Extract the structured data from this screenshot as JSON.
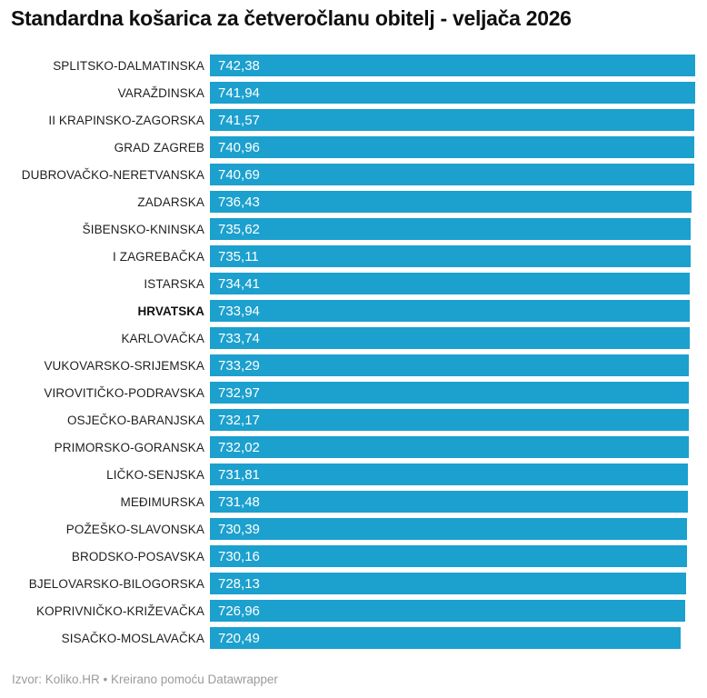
{
  "title": "Standardna košarica za četveročlanu obitelj - veljača 2026",
  "footer": {
    "text": "Izvor: Koliko.HR • Kreirano pomoću Datawrapper"
  },
  "colors": {
    "bar": "#1ca0ce",
    "title_text": "#0f0f0f",
    "label_text": "#1f1f1f",
    "value_text": "#ffffff",
    "footer_text": "#9b9b9b",
    "background": "#ffffff"
  },
  "chart_data": {
    "type": "bar",
    "orientation": "horizontal",
    "title": "Standardna košarica za četveročlanu obitelj - veljača 2026",
    "xlabel": "",
    "ylabel": "",
    "xlim": [
      0,
      742.38
    ],
    "grid": false,
    "legend": false,
    "highlight_category": "HRVATSKA",
    "source": "Izvor: Koliko.HR",
    "credit": "Kreirano pomoću Datawrapper",
    "categories": [
      "SPLITSKO-DALMATINSKA",
      "VARAŽDINSKA",
      "II KRAPINSKO-ZAGORSKA",
      "GRAD ZAGREB",
      "DUBROVAČKO-NERETVANSKA",
      "ZADARSKA",
      "ŠIBENSKO-KNINSKA",
      "I ZAGREBAČKA",
      "ISTARSKA",
      "HRVATSKA",
      "KARLOVAČKA",
      "VUKOVARSKO-SRIJEMSKA",
      "VIROVITIČKO-PODRAVSKA",
      "OSJEČKO-BARANJSKA",
      "PRIMORSKO-GORANSKA",
      "LIČKO-SENJSKA",
      "MEĐIMURSKA",
      "POŽEŠKO-SLAVONSKA",
      "BRODSKO-POSAVSKA",
      "BJELOVARSKO-BILOGORSKA",
      "KOPRIVNIČKO-KRIŽEVAČKA",
      "SISAČKO-MOSLAVAČKA"
    ],
    "values": [
      742.38,
      741.94,
      741.57,
      740.96,
      740.69,
      736.43,
      735.62,
      735.11,
      734.41,
      733.94,
      733.74,
      733.29,
      732.97,
      732.17,
      732.02,
      731.81,
      731.48,
      730.39,
      730.16,
      728.13,
      726.96,
      720.49
    ],
    "value_labels": [
      "742,38",
      "741,94",
      "741,57",
      "740,96",
      "740,69",
      "736,43",
      "735,62",
      "735,11",
      "734,41",
      "733,94",
      "733,74",
      "733,29",
      "732,97",
      "732,17",
      "732,02",
      "731,81",
      "731,48",
      "730,39",
      "730,16",
      "728,13",
      "726,96",
      "720,49"
    ]
  }
}
